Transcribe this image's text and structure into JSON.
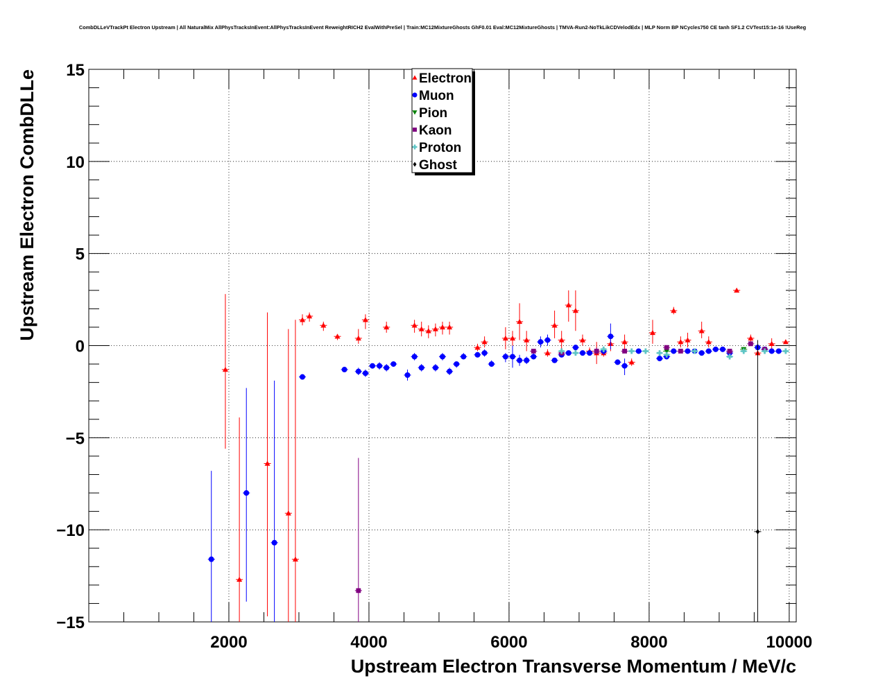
{
  "chart_data": {
    "type": "scatter",
    "title": "CombDLLeVTrackPt Electron Upstream | All NaturalMix AllPhysTracksInEvent:AllPhysTracksInEvent ReweightRICH2 EvalWithPreSel | Train:MC12MixtureGhosts GhF0.01 Eval:MC12MixtureGhosts | TMVA-Run2-NoTkLikCDVelodEdx | MLP Norm BP NCycles750 CE tanh SF1.2 CVTest15:1e-16 !UseReg",
    "xlabel": "Upstream Electron Transverse Momentum / MeV/c",
    "ylabel": "Upstream Electron CombDLLe",
    "xlim": [
      0,
      10100
    ],
    "ylim": [
      -15,
      15
    ],
    "x_ticks": [
      2000,
      4000,
      6000,
      8000,
      10000
    ],
    "x_tick_labels": [
      "2000",
      "4000",
      "6000",
      "8000",
      "10000"
    ],
    "y_ticks": [
      -15,
      -10,
      -5,
      0,
      5,
      10,
      15
    ],
    "y_tick_labels": [
      "−15",
      "−10",
      "−5",
      "0",
      "5",
      "10",
      "15"
    ],
    "grid": true,
    "legend_position": "top-center",
    "series": [
      {
        "name": "Electron",
        "color": "#ff0000",
        "marker": "triangle",
        "points": [
          [
            1950,
            -1.3,
            -5.6,
            2.8
          ],
          [
            2150,
            -12.7,
            -15,
            -3.9
          ],
          [
            2550,
            -6.4,
            -14.7,
            1.8
          ],
          [
            2850,
            -9.1,
            -15,
            0.9
          ],
          [
            2950,
            -11.6,
            -15,
            1.4
          ],
          [
            3050,
            1.4,
            1.1,
            1.7
          ],
          [
            3150,
            1.6,
            1.3,
            1.8
          ],
          [
            3350,
            1.1,
            0.8,
            1.3
          ],
          [
            3550,
            0.5,
            0.3,
            0.6
          ],
          [
            3850,
            0.4,
            0.1,
            0.9
          ],
          [
            3950,
            1.4,
            0.9,
            1.7
          ],
          [
            4250,
            1.0,
            0.7,
            1.3
          ],
          [
            4650,
            1.1,
            0.7,
            1.4
          ],
          [
            4750,
            0.9,
            0.5,
            1.3
          ],
          [
            4850,
            0.8,
            0.4,
            1.1
          ],
          [
            4950,
            0.9,
            0.5,
            1.2
          ],
          [
            5050,
            1.0,
            0.6,
            1.3
          ],
          [
            5150,
            1.0,
            0.6,
            1.3
          ],
          [
            5550,
            -0.1,
            -0.3,
            0.1
          ],
          [
            5650,
            0.2,
            -0.1,
            0.5
          ],
          [
            5950,
            0.4,
            -0.2,
            1.0
          ],
          [
            6050,
            0.4,
            0.0,
            0.8
          ],
          [
            6150,
            1.3,
            0.3,
            2.3
          ],
          [
            6250,
            0.3,
            -0.3,
            0.8
          ],
          [
            6550,
            -0.4,
            -0.6,
            -0.2
          ],
          [
            6650,
            1.1,
            0.4,
            1.9
          ],
          [
            6750,
            0.3,
            -0.2,
            0.8
          ],
          [
            6850,
            2.2,
            1.3,
            3.0
          ],
          [
            6950,
            1.9,
            0.8,
            3.0
          ],
          [
            7050,
            0.3,
            0.0,
            0.6
          ],
          [
            7150,
            -0.3,
            -0.5,
            -0.1
          ],
          [
            7250,
            -0.4,
            -1.0,
            0.2
          ],
          [
            7350,
            -0.4,
            -0.6,
            -0.2
          ],
          [
            7450,
            0.1,
            -0.3,
            0.4
          ],
          [
            7650,
            0.2,
            -0.2,
            0.6
          ],
          [
            7750,
            -0.9,
            -1.1,
            -0.7
          ],
          [
            8050,
            0.7,
            0.1,
            1.4
          ],
          [
            8350,
            1.9,
            1.7,
            2.1
          ],
          [
            8450,
            0.2,
            -0.1,
            0.5
          ],
          [
            8550,
            0.3,
            -0.1,
            0.7
          ],
          [
            8750,
            0.8,
            0.4,
            1.3
          ],
          [
            8850,
            0.2,
            -0.1,
            0.5
          ],
          [
            9250,
            3.0,
            2.9,
            3.1
          ],
          [
            9450,
            0.4,
            0.2,
            0.6
          ],
          [
            9550,
            -0.4,
            -0.6,
            -0.2
          ],
          [
            9750,
            0.1,
            -0.2,
            0.4
          ],
          [
            9950,
            0.2,
            0.1,
            0.3
          ]
        ]
      },
      {
        "name": "Muon",
        "color": "#0000ff",
        "marker": "circle",
        "points": [
          [
            1750,
            -11.6,
            -15,
            -6.8
          ],
          [
            2250,
            -8.0,
            -13.9,
            -2.3
          ],
          [
            2650,
            -10.7,
            -15,
            -1.9
          ],
          [
            3050,
            -1.7,
            -1.8,
            -1.6
          ],
          [
            3650,
            -1.3,
            -1.4,
            -1.2
          ],
          [
            3850,
            -1.4,
            -1.6,
            -1.2
          ],
          [
            3950,
            -1.5,
            -1.7,
            -1.3
          ],
          [
            4050,
            -1.1,
            -1.2,
            -1.0
          ],
          [
            4150,
            -1.1,
            -1.3,
            -0.9
          ],
          [
            4250,
            -1.2,
            -1.4,
            -1.0
          ],
          [
            4350,
            -1.0,
            -1.1,
            -0.9
          ],
          [
            4550,
            -1.6,
            -1.9,
            -1.3
          ],
          [
            4650,
            -0.6,
            -0.8,
            -0.4
          ],
          [
            4750,
            -1.2,
            -1.4,
            -1.0
          ],
          [
            4950,
            -1.2,
            -1.4,
            -1.0
          ],
          [
            5050,
            -0.6,
            -0.8,
            -0.4
          ],
          [
            5150,
            -1.4,
            -1.6,
            -1.2
          ],
          [
            5250,
            -1.0,
            -1.2,
            -0.9
          ],
          [
            5350,
            -0.6,
            -0.7,
            -0.4
          ],
          [
            5550,
            -0.5,
            -0.6,
            -0.4
          ],
          [
            5650,
            -0.4,
            -0.6,
            -0.2
          ],
          [
            5750,
            -1.0,
            -1.1,
            -0.8
          ],
          [
            5950,
            -0.6,
            -0.9,
            -0.4
          ],
          [
            6050,
            -0.6,
            -1.2,
            0.0
          ],
          [
            6150,
            -0.8,
            -1.1,
            -0.5
          ],
          [
            6250,
            -0.8,
            -1.0,
            -0.6
          ],
          [
            6350,
            -0.6,
            -0.7,
            -0.4
          ],
          [
            6450,
            0.2,
            -0.1,
            0.5
          ],
          [
            6550,
            0.3,
            0.0,
            0.6
          ],
          [
            6650,
            -0.8,
            -0.9,
            -0.7
          ],
          [
            6750,
            -0.5,
            -0.6,
            -0.4
          ],
          [
            6850,
            -0.4,
            -0.5,
            -0.3
          ],
          [
            6950,
            -0.1,
            -0.2,
            0.0
          ],
          [
            7050,
            -0.4,
            -0.5,
            -0.3
          ],
          [
            7150,
            -0.4,
            -0.5,
            -0.3
          ],
          [
            7350,
            -0.3,
            -0.5,
            -0.1
          ],
          [
            7450,
            0.5,
            -0.2,
            1.2
          ],
          [
            7550,
            -0.9,
            -1.0,
            -0.8
          ],
          [
            7650,
            -1.1,
            -1.6,
            -0.7
          ],
          [
            7850,
            -0.3,
            -0.4,
            -0.2
          ],
          [
            8150,
            -0.7,
            -0.8,
            -0.6
          ],
          [
            8250,
            -0.6,
            -0.7,
            -0.5
          ],
          [
            8350,
            -0.3,
            -0.4,
            -0.2
          ],
          [
            8550,
            -0.3,
            -0.4,
            -0.2
          ],
          [
            8650,
            -0.3,
            -0.4,
            -0.2
          ],
          [
            8750,
            -0.4,
            -0.5,
            -0.3
          ],
          [
            8850,
            -0.3,
            -0.4,
            -0.2
          ],
          [
            8950,
            -0.2,
            -0.3,
            -0.1
          ],
          [
            9050,
            -0.2,
            -0.3,
            -0.1
          ],
          [
            9150,
            -0.4,
            -0.5,
            -0.3
          ],
          [
            9550,
            -0.1,
            -0.2,
            0.0
          ],
          [
            9650,
            -0.2,
            -0.3,
            -0.1
          ],
          [
            9750,
            -0.3,
            -0.4,
            -0.2
          ],
          [
            9850,
            -0.3,
            -0.4,
            -0.2
          ]
        ]
      },
      {
        "name": "Pion",
        "color": "#008000",
        "marker": "triangle-down",
        "points": [
          [
            8250,
            -0.3,
            -0.4,
            -0.2
          ],
          [
            9350,
            -0.2,
            -0.3,
            -0.1
          ]
        ]
      },
      {
        "name": "Kaon",
        "color": "#800080",
        "marker": "square",
        "points": [
          [
            3850,
            -13.3,
            -15,
            -6.1
          ],
          [
            6350,
            -0.3,
            -0.4,
            -0.2
          ],
          [
            6750,
            -0.4,
            -0.5,
            -0.3
          ],
          [
            7250,
            -0.3,
            -0.5,
            -0.1
          ],
          [
            7650,
            -0.3,
            -0.4,
            -0.2
          ],
          [
            8250,
            -0.1,
            -0.2,
            0.0
          ],
          [
            8450,
            -0.3,
            -0.4,
            -0.2
          ],
          [
            9150,
            -0.3,
            -0.4,
            -0.2
          ],
          [
            9450,
            0.1,
            0.0,
            0.2
          ],
          [
            9650,
            -0.2,
            -0.3,
            -0.1
          ]
        ]
      },
      {
        "name": "Proton",
        "color": "#5fc5c5",
        "marker": "cross",
        "points": [
          [
            6750,
            -0.3,
            -0.4,
            -0.2
          ],
          [
            6950,
            -0.4,
            -0.5,
            -0.3
          ],
          [
            7350,
            -0.2,
            -0.3,
            -0.1
          ],
          [
            7750,
            -0.3,
            -0.4,
            -0.2
          ],
          [
            7950,
            -0.3,
            -0.4,
            -0.2
          ],
          [
            8150,
            -0.4,
            -0.5,
            -0.3
          ],
          [
            8250,
            -0.5,
            -0.6,
            -0.4
          ],
          [
            8650,
            -0.3,
            -0.4,
            -0.2
          ],
          [
            9150,
            -0.6,
            -0.7,
            -0.5
          ],
          [
            9350,
            -0.3,
            -0.4,
            -0.2
          ],
          [
            9650,
            -0.3,
            -0.4,
            -0.2
          ],
          [
            9950,
            -0.3,
            -0.4,
            -0.2
          ]
        ]
      },
      {
        "name": "Ghost",
        "color": "#000000",
        "marker": "diamond",
        "points": [
          [
            9550,
            -10.1,
            -15,
            0.3
          ]
        ]
      }
    ]
  }
}
